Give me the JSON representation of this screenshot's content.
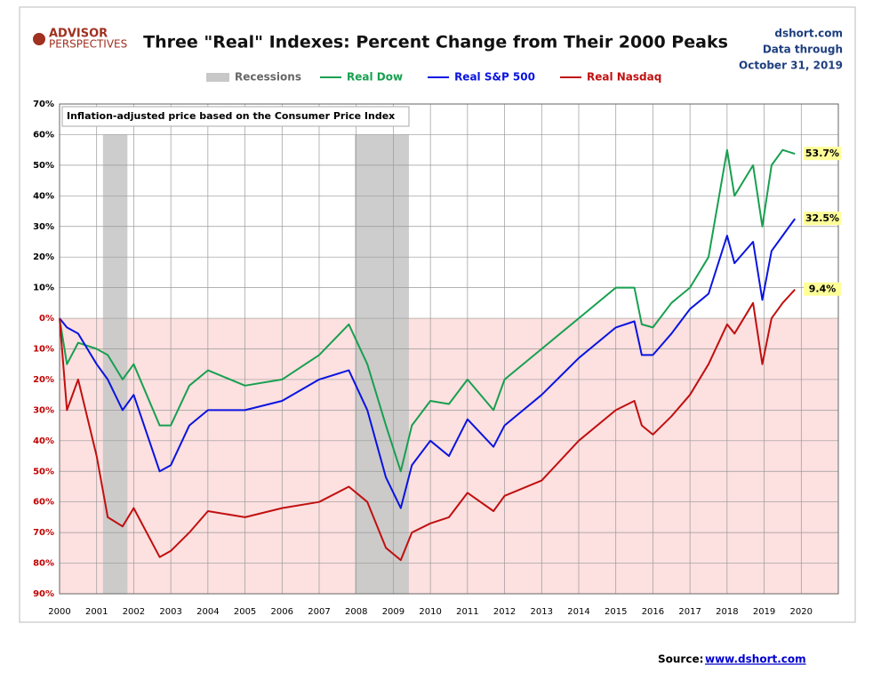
{
  "header": {
    "logo_top": "ADVISOR",
    "logo_bottom": "PERSPECTIVES",
    "site": "dshort.com",
    "through": "Data through",
    "date": "October 31, 2019"
  },
  "chart_data": {
    "type": "line",
    "title": "Three \"Real\" Indexes: Percent Change from Their 2000 Peaks",
    "annotation": "Inflation-adjusted  price based on the Consumer Price Index",
    "recession_label": "Recessions",
    "recession_color": "#c8c8c8",
    "recessions": [
      [
        2001.17,
        2001.83
      ],
      [
        2007.96,
        2009.42
      ]
    ],
    "x": [
      2000,
      2000.2,
      2000.5,
      2001,
      2001.3,
      2001.7,
      2002,
      2002.7,
      2003,
      2003.5,
      2004,
      2005,
      2006,
      2007,
      2007.8,
      2008.3,
      2008.8,
      2009.2,
      2009.5,
      2010,
      2010.5,
      2011,
      2011.7,
      2012,
      2013,
      2014,
      2015,
      2015.5,
      2015.7,
      2016,
      2016.5,
      2017,
      2017.5,
      2018,
      2018.2,
      2018.7,
      2018.95,
      2019.2,
      2019.5,
      2019.83
    ],
    "series": [
      {
        "name": "Real Dow",
        "color": "#18a050",
        "last_label": "53.7%",
        "values": [
          0,
          -15,
          -8,
          -10,
          -12,
          -20,
          -15,
          -35,
          -35,
          -22,
          -17,
          -22,
          -20,
          -12,
          -2,
          -15,
          -35,
          -50,
          -35,
          -27,
          -28,
          -20,
          -30,
          -20,
          -10,
          0,
          10,
          10,
          -2,
          -3,
          5,
          10,
          20,
          55,
          40,
          50,
          30,
          50,
          55,
          53.7
        ]
      },
      {
        "name": "Real S&P 500",
        "color": "#0a14e0",
        "last_label": "32.5%",
        "values": [
          0,
          -3,
          -5,
          -15,
          -20,
          -30,
          -25,
          -50,
          -48,
          -35,
          -30,
          -30,
          -27,
          -20,
          -17,
          -30,
          -52,
          -62,
          -48,
          -40,
          -45,
          -33,
          -42,
          -35,
          -25,
          -13,
          -3,
          -1,
          -12,
          -12,
          -5,
          3,
          8,
          27,
          18,
          25,
          6,
          22,
          27,
          32.5
        ]
      },
      {
        "name": "Real Nasdaq",
        "color": "#c01010",
        "last_label": "9.4%",
        "values": [
          0,
          -30,
          -20,
          -45,
          -65,
          -68,
          -62,
          -78,
          -76,
          -70,
          -63,
          -65,
          -62,
          -60,
          -55,
          -60,
          -75,
          -79,
          -70,
          -67,
          -65,
          -57,
          -63,
          -58,
          -53,
          -40,
          -30,
          -27,
          -35,
          -38,
          -32,
          -25,
          -15,
          -2,
          -5,
          5,
          -15,
          0,
          5,
          9.4
        ]
      }
    ],
    "xlim": [
      2000,
      2021
    ],
    "xticks": [
      2000,
      2001,
      2002,
      2003,
      2004,
      2005,
      2006,
      2007,
      2008,
      2009,
      2010,
      2011,
      2012,
      2013,
      2014,
      2015,
      2016,
      2017,
      2018,
      2019,
      2020
    ],
    "ylim": [
      -90,
      70
    ],
    "yticks": [
      {
        "value": -90,
        "label": "90%"
      },
      {
        "value": -80,
        "label": "80%"
      },
      {
        "value": -70,
        "label": "70%"
      },
      {
        "value": -60,
        "label": "60%"
      },
      {
        "value": -50,
        "label": "50%"
      },
      {
        "value": -40,
        "label": "40%"
      },
      {
        "value": -30,
        "label": "30%"
      },
      {
        "value": -20,
        "label": "20%"
      },
      {
        "value": -10,
        "label": "10%"
      },
      {
        "value": 0,
        "label": "0%"
      },
      {
        "value": 10,
        "label": "10%"
      },
      {
        "value": 20,
        "label": "20%"
      },
      {
        "value": 30,
        "label": "30%"
      },
      {
        "value": 40,
        "label": "40%"
      },
      {
        "value": 50,
        "label": "50%"
      },
      {
        "value": 60,
        "label": "60%"
      },
      {
        "value": 70,
        "label": "70%"
      }
    ],
    "grid": true,
    "negative_fill": "#fde0e0"
  },
  "footer": {
    "source": "Source:",
    "link": "www.dshort.com"
  }
}
